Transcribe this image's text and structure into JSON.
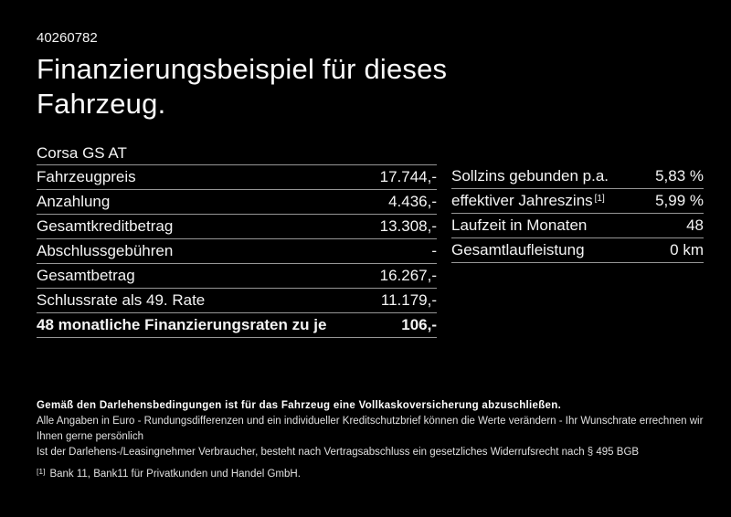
{
  "page": {
    "background_color": "#000000",
    "divider_color": "#969696",
    "doc_number": "40260782",
    "title": "Finanzierungsbeispiel für dieses Fahrzeug."
  },
  "finance_table": {
    "model": "Corsa GS AT",
    "rows": [
      {
        "label": "Fahrzeugpreis",
        "value": "17.744,-"
      },
      {
        "label": "Anzahlung",
        "value": "4.436,-"
      },
      {
        "label": "Gesamtkreditbetrag",
        "value": "13.308,-"
      },
      {
        "label": "Abschlussgebühren",
        "value": "-"
      },
      {
        "label": "Gesamtbetrag",
        "value": "16.267,-"
      },
      {
        "label": "Schlussrate als 49. Rate",
        "value": "11.179,-"
      }
    ],
    "highlight_row": {
      "label": "48 monatliche Finanzierungsraten zu je",
      "value": "106,-"
    }
  },
  "conditions_table": {
    "rows": [
      {
        "label": "Sollzins gebunden p.a.",
        "value": "5,83 %"
      },
      {
        "label": "effektiver Jahreszins",
        "footnote_marker": "[1]",
        "value": "5,99 %"
      },
      {
        "label": "Laufzeit in Monaten",
        "value": "48"
      },
      {
        "label": "Gesamtlaufleistung",
        "value": "0 km"
      }
    ]
  },
  "footer": {
    "insurance_note": "Gemäß den Darlehensbedingungen ist für das Fahrzeug eine Vollkaskoversicherung abzuschließen.",
    "note_line_2": "Alle Angaben in Euro - Rundungsdifferenzen und ein individueller Kreditschutzbrief können die Werte verändern - Ihr Wunschrate errechnen wir Ihnen gerne persönlich",
    "note_line_3": "Ist der Darlehens-/Leasingnehmer Verbraucher, besteht nach Vertragsabschluss ein gesetzliches Widerrufsrecht nach § 495 BGB",
    "footnote_marker": "[1]",
    "footnote_text": "Bank 11, Bank11 für Privatkunden und Handel GmbH."
  }
}
